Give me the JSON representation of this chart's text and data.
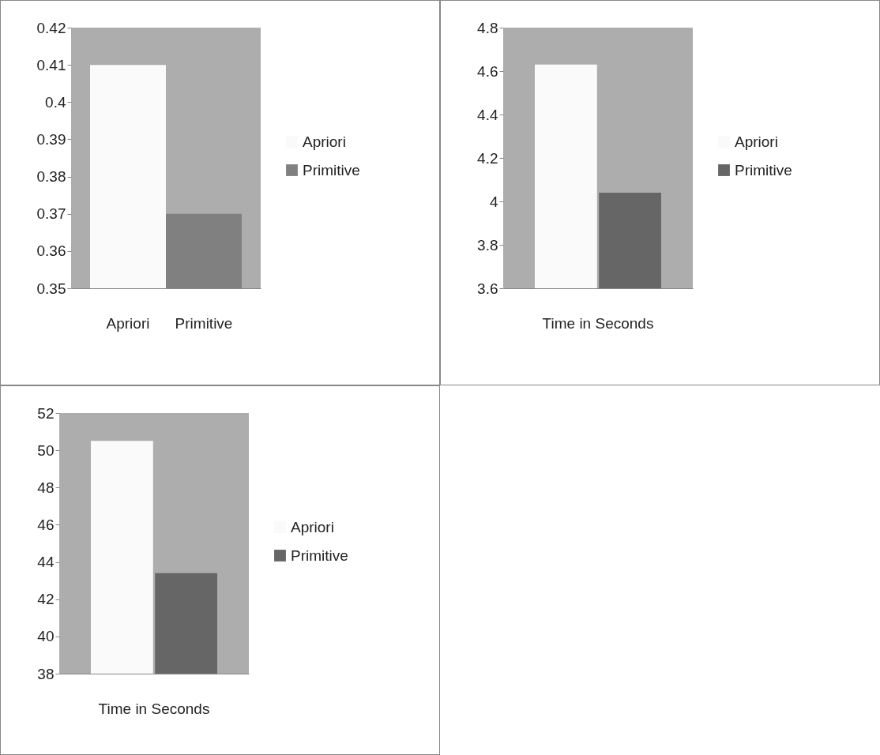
{
  "chart_data": [
    {
      "type": "bar",
      "categories": [
        "Apriori",
        "Primitive"
      ],
      "series": [
        {
          "name": "Apriori",
          "color": "#fafafa",
          "values": [
            0.41,
            null
          ]
        },
        {
          "name": "Primitive",
          "color": "#808080",
          "values": [
            null,
            0.37
          ]
        }
      ],
      "ylim": [
        0.35,
        0.42
      ],
      "yticks": [
        0.35,
        0.36,
        0.37,
        0.38,
        0.39,
        0.4,
        0.41,
        0.42
      ],
      "legend": "right",
      "grid": false
    },
    {
      "type": "bar",
      "categories": [
        "Time in Seconds"
      ],
      "series": [
        {
          "name": "Apriori",
          "color": "#fafafa",
          "values": [
            4.63
          ]
        },
        {
          "name": "Primitive",
          "color": "#666666",
          "values": [
            4.04
          ]
        }
      ],
      "ylim": [
        3.6,
        4.8
      ],
      "yticks": [
        3.6,
        3.8,
        4,
        4.2,
        4.4,
        4.6,
        4.8
      ],
      "legend": "right",
      "grid": false
    },
    {
      "type": "bar",
      "categories": [
        "Time in Seconds"
      ],
      "series": [
        {
          "name": "Apriori",
          "color": "#fafafa",
          "values": [
            50.5
          ]
        },
        {
          "name": "Primitive",
          "color": "#666666",
          "values": [
            43.4
          ]
        }
      ],
      "ylim": [
        38,
        52
      ],
      "yticks": [
        38,
        40,
        42,
        44,
        46,
        48,
        50,
        52
      ],
      "legend": "right",
      "grid": false
    }
  ]
}
